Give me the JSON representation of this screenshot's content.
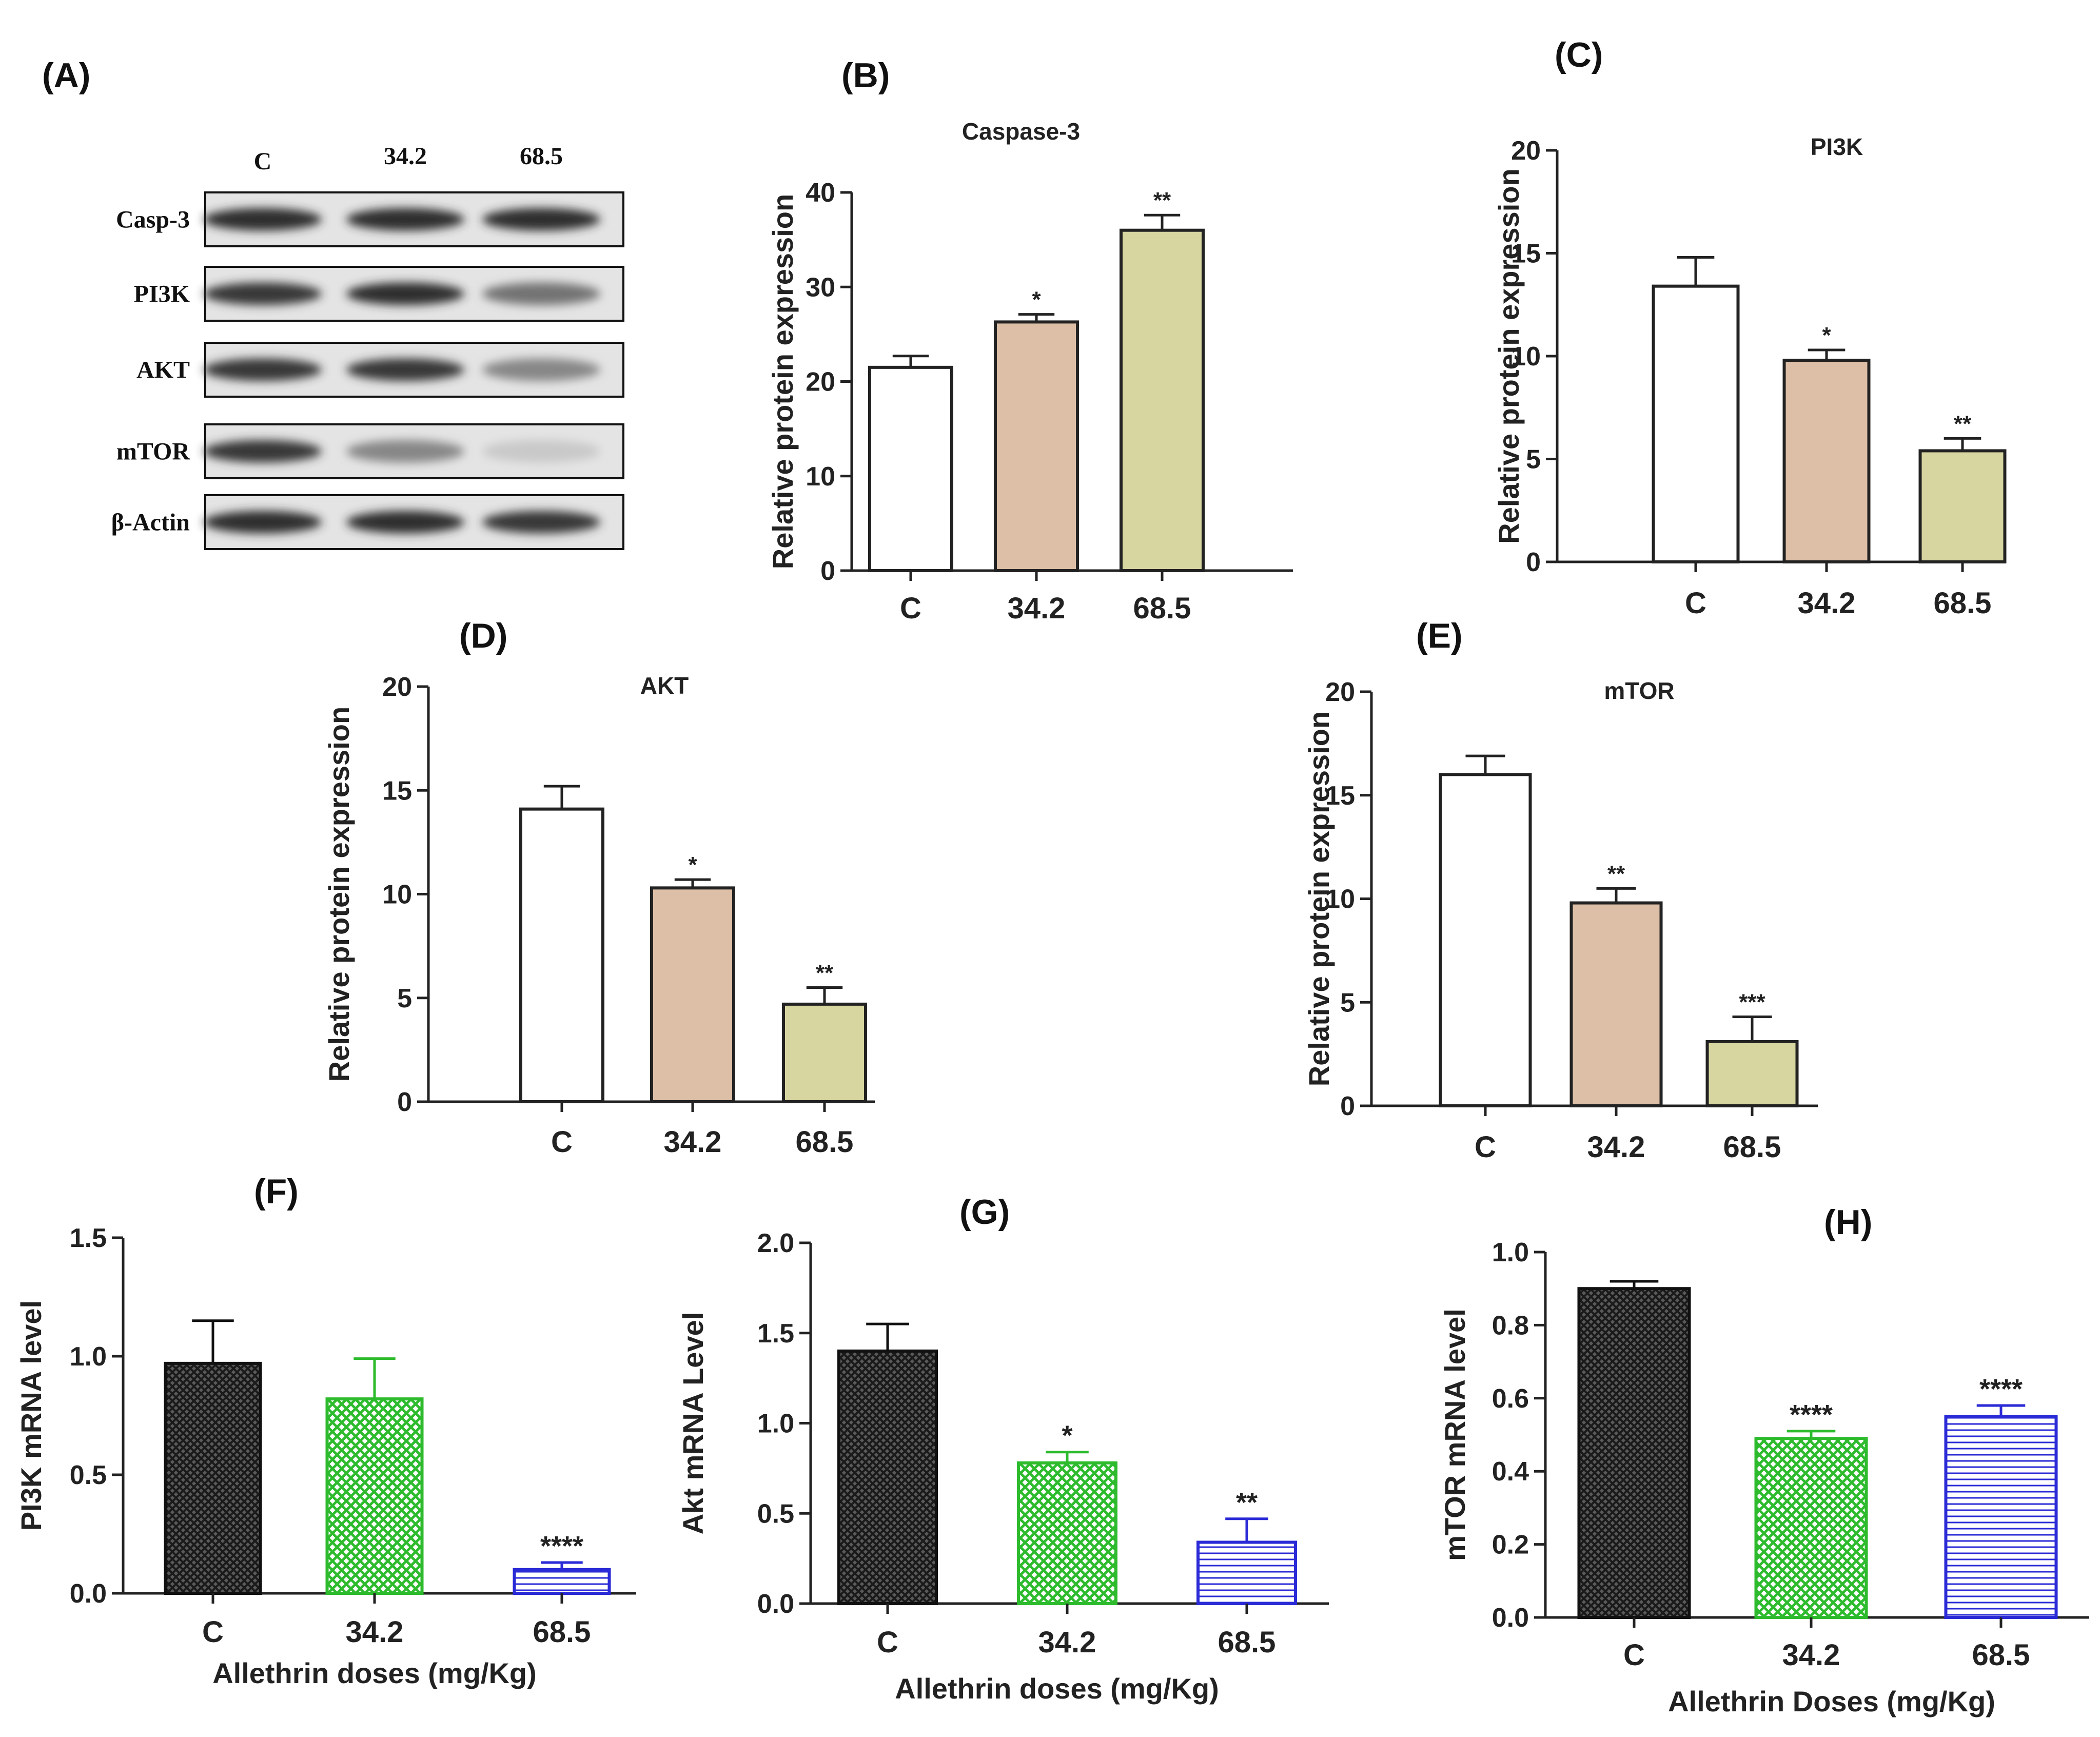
{
  "blot": {
    "panel_label": "(A)",
    "columns": [
      "C",
      "34.2",
      "68.5"
    ],
    "rows": [
      {
        "label": "Casp-3",
        "intensities": [
          0.9,
          0.9,
          0.9
        ]
      },
      {
        "label": "PI3K",
        "intensities": [
          0.85,
          0.9,
          0.55
        ]
      },
      {
        "label": "AKT",
        "intensities": [
          0.85,
          0.85,
          0.45
        ]
      },
      {
        "label": "mTOR",
        "intensities": [
          0.85,
          0.45,
          0.12
        ]
      },
      {
        "label": "β-Actin",
        "intensities": [
          0.9,
          0.9,
          0.85
        ]
      }
    ]
  },
  "colors": {
    "control": "#ffffff",
    "dose_low_protein": "#dcbfa6",
    "dose_high_protein": "#d8d6a0",
    "mrna_control": "#3a3a3a",
    "mrna_low": "#2dbb2d",
    "mrna_high": "#2a2ad6",
    "axis": "#222222"
  },
  "chart_data": [
    {
      "panel_label": "(B)",
      "type": "bar",
      "title": "Caspase-3",
      "categories": [
        "C",
        "34.2",
        "68.5"
      ],
      "values": [
        21.5,
        26.3,
        36
      ],
      "errors": [
        1.2,
        0.8,
        1.6
      ],
      "significance": [
        "",
        "*",
        "**"
      ],
      "ylabel": "Relative protein expression",
      "xlabel": "",
      "ylim": [
        0,
        40
      ],
      "yticks": [
        "0",
        "10",
        "20",
        "30",
        "40"
      ],
      "fills": [
        "control",
        "dose_low_protein",
        "dose_high_protein"
      ]
    },
    {
      "panel_label": "(C)",
      "type": "bar",
      "title": "PI3K",
      "categories": [
        "C",
        "34.2",
        "68.5"
      ],
      "values": [
        13.4,
        9.8,
        5.4
      ],
      "errors": [
        1.4,
        0.5,
        0.6
      ],
      "significance": [
        "",
        "*",
        "**"
      ],
      "ylabel": "Relative protein expression",
      "xlabel": "",
      "ylim": [
        0,
        20
      ],
      "yticks": [
        "0",
        "5",
        "10",
        "15",
        "20"
      ],
      "fills": [
        "control",
        "dose_low_protein",
        "dose_high_protein"
      ]
    },
    {
      "panel_label": "(D)",
      "type": "bar",
      "title": "AKT",
      "categories": [
        "C",
        "34.2",
        "68.5"
      ],
      "values": [
        14.1,
        10.3,
        4.7
      ],
      "errors": [
        1.1,
        0.4,
        0.8
      ],
      "significance": [
        "",
        "*",
        "**"
      ],
      "ylabel": "Relative protein expression",
      "xlabel": "",
      "ylim": [
        0,
        20
      ],
      "yticks": [
        "0",
        "5",
        "10",
        "15",
        "20"
      ],
      "fills": [
        "control",
        "dose_low_protein",
        "dose_high_protein"
      ]
    },
    {
      "panel_label": "(E)",
      "type": "bar",
      "title": "mTOR",
      "categories": [
        "C",
        "34.2",
        "68.5"
      ],
      "values": [
        16,
        9.8,
        3.1
      ],
      "errors": [
        0.9,
        0.7,
        1.2
      ],
      "significance": [
        "",
        "**",
        "***"
      ],
      "ylabel": "Relative protein expression",
      "xlabel": "",
      "ylim": [
        0,
        20
      ],
      "yticks": [
        "0",
        "5",
        "10",
        "15",
        "20"
      ],
      "fills": [
        "control",
        "dose_low_protein",
        "dose_high_protein"
      ]
    },
    {
      "panel_label": "(F)",
      "type": "bar",
      "title": "",
      "categories": [
        "C",
        "34.2",
        "68.5"
      ],
      "values": [
        0.97,
        0.82,
        0.1
      ],
      "errors": [
        0.18,
        0.17,
        0.03
      ],
      "significance": [
        "",
        "",
        "****"
      ],
      "ylabel": "PI3K mRNA level",
      "xlabel": "Allethrin doses (mg/Kg)",
      "ylim": [
        0,
        1.5
      ],
      "yticks": [
        "0.0",
        "0.5",
        "1.0",
        "1.5"
      ],
      "fills": [
        "mrna_control",
        "mrna_low",
        "mrna_high"
      ]
    },
    {
      "panel_label": "(G)",
      "type": "bar",
      "title": "",
      "categories": [
        "C",
        "34.2",
        "68.5"
      ],
      "values": [
        1.4,
        0.78,
        0.34
      ],
      "errors": [
        0.15,
        0.06,
        0.13
      ],
      "significance": [
        "",
        "*",
        "**"
      ],
      "ylabel": "Akt mRNA Level",
      "xlabel": "Allethrin doses (mg/Kg)",
      "ylim": [
        0,
        2.0
      ],
      "yticks": [
        "0.0",
        "0.5",
        "1.0",
        "1.5",
        "2.0"
      ],
      "fills": [
        "mrna_control",
        "mrna_low",
        "mrna_high"
      ]
    },
    {
      "panel_label": "(H)",
      "type": "bar",
      "title": "",
      "categories": [
        "C",
        "34.2",
        "68.5"
      ],
      "values": [
        0.9,
        0.49,
        0.55
      ],
      "errors": [
        0.02,
        0.02,
        0.03
      ],
      "significance": [
        "",
        "****",
        "****"
      ],
      "ylabel": "mTOR mRNA level",
      "xlabel": "Allethrin Doses (mg/Kg)",
      "ylim": [
        0,
        1.0
      ],
      "yticks": [
        "0.0",
        "0.2",
        "0.4",
        "0.6",
        "0.8",
        "1.0"
      ],
      "fills": [
        "mrna_control",
        "mrna_low",
        "mrna_high"
      ]
    }
  ]
}
